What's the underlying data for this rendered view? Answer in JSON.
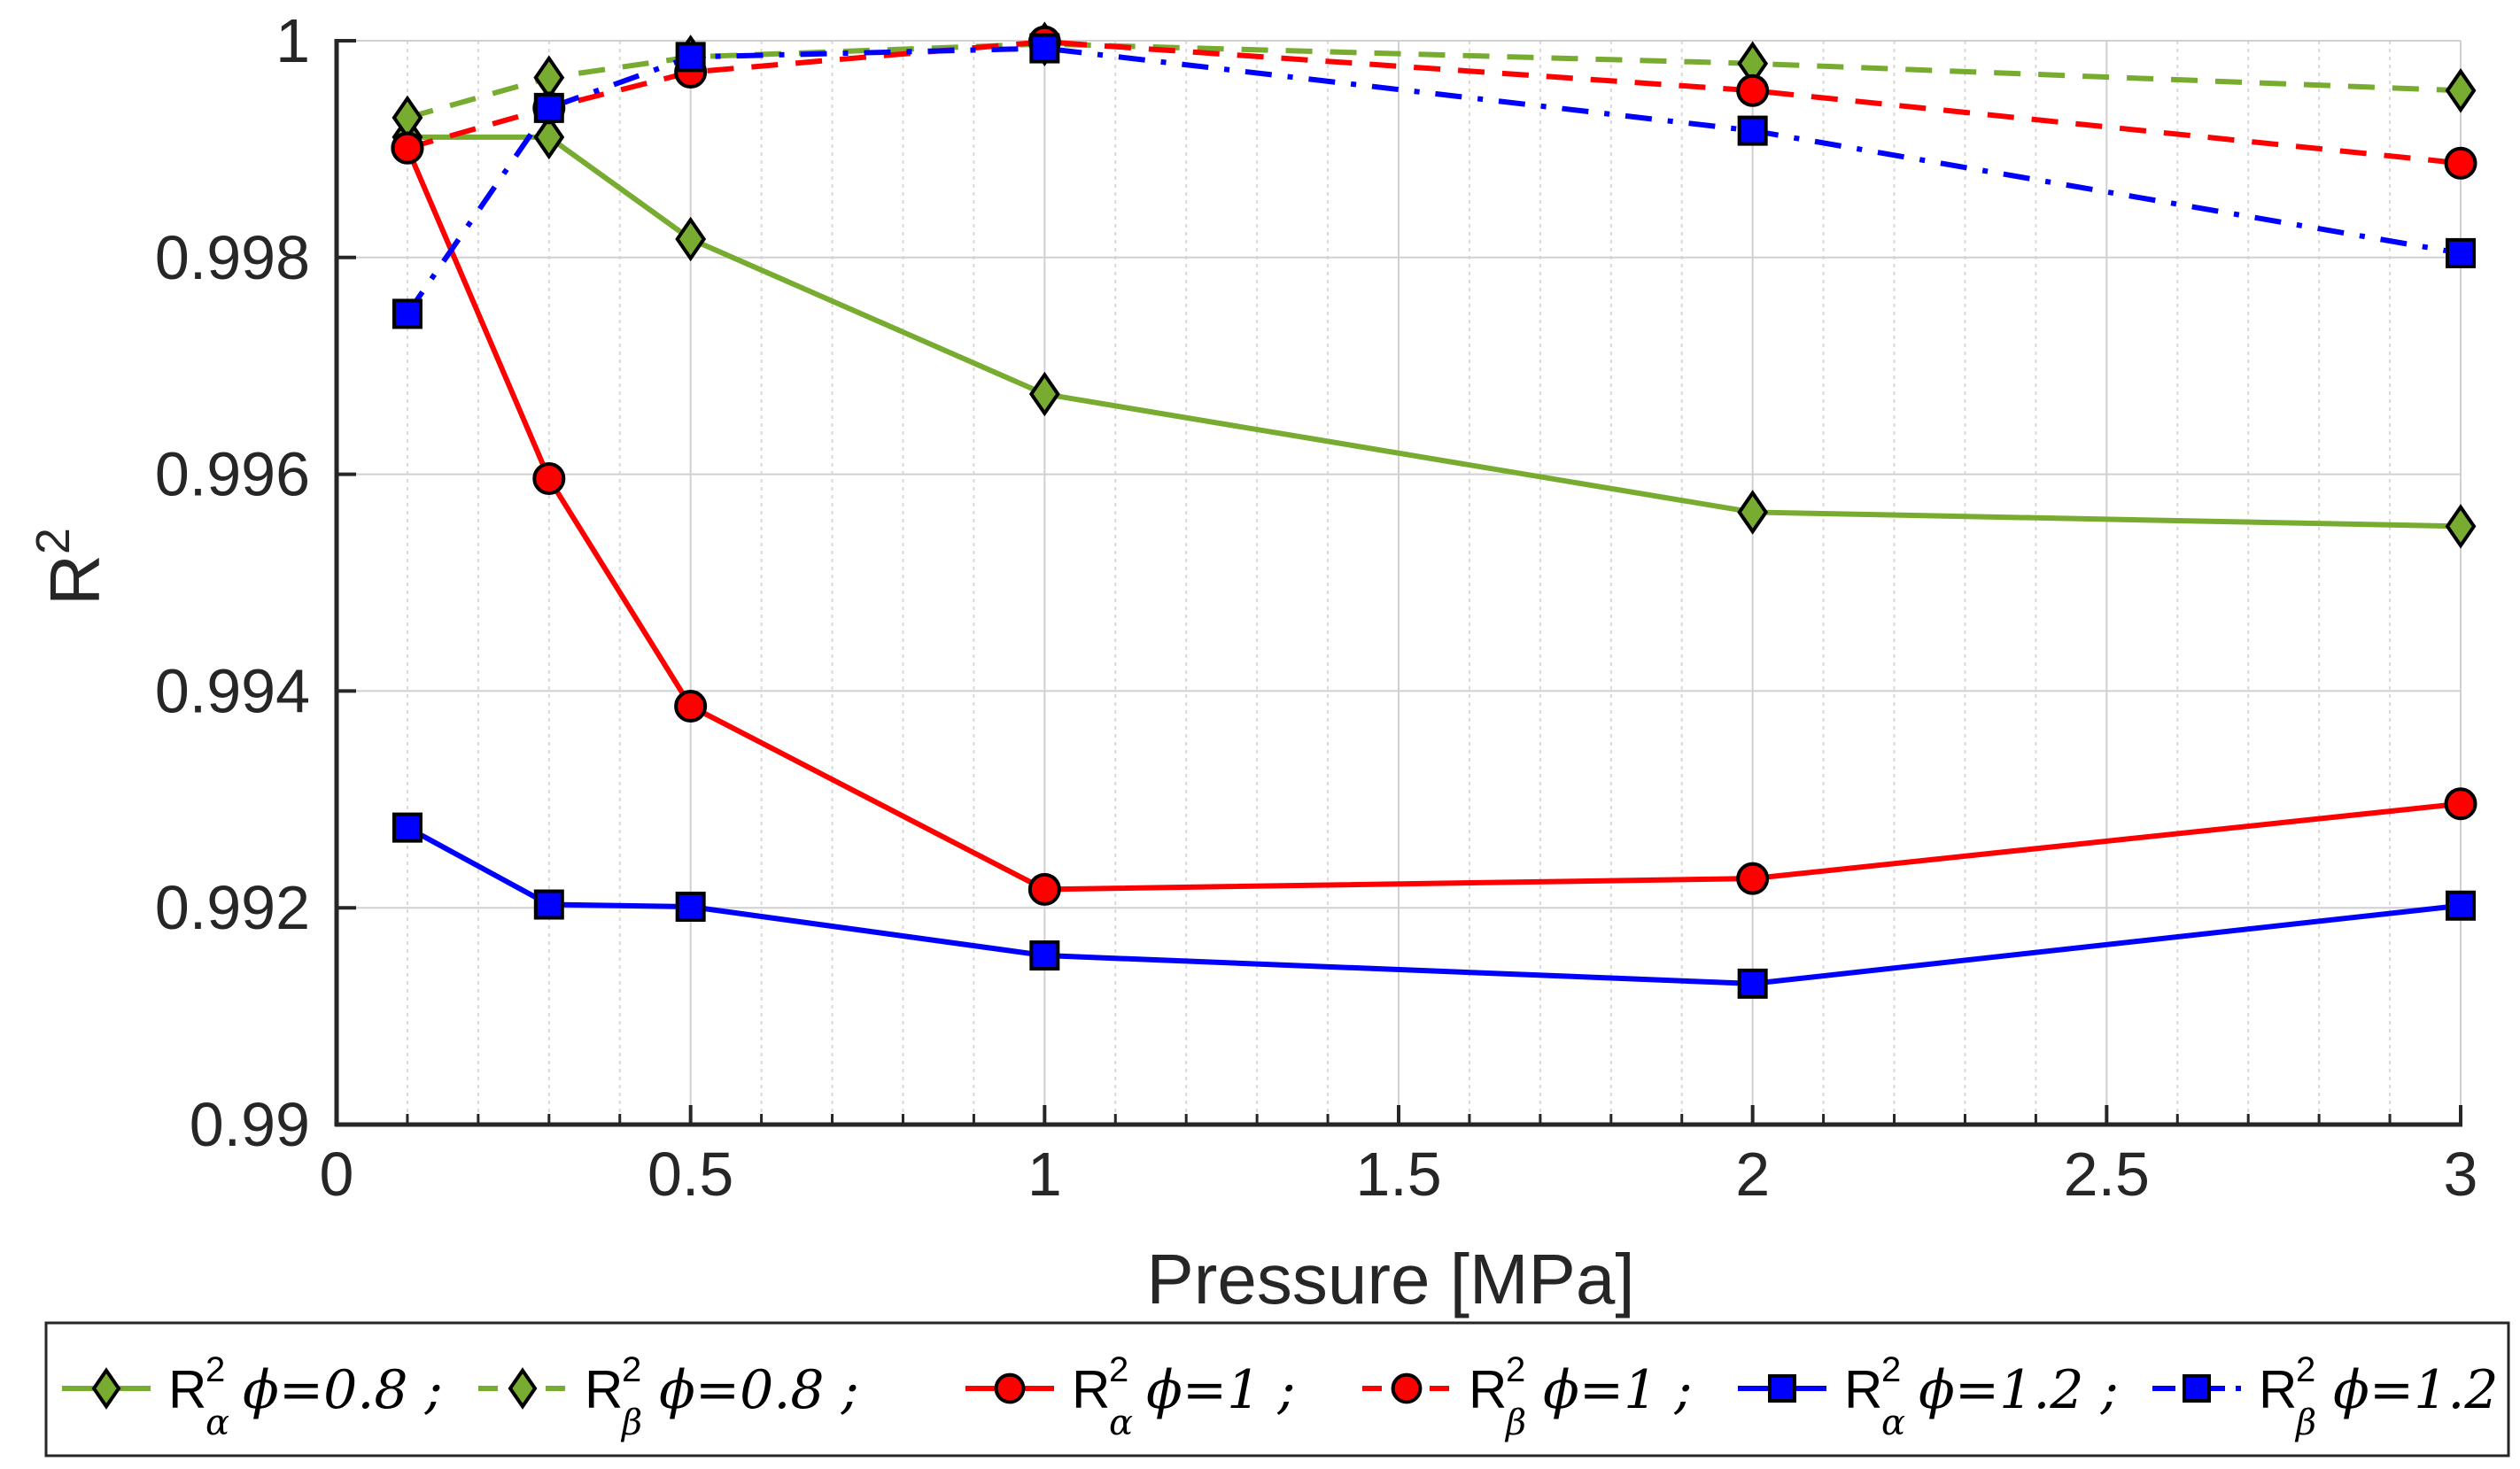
{
  "chart_data": {
    "type": "line",
    "title": "",
    "xlabel": "Pressure [MPa]",
    "ylabel": "R",
    "ylabel_sup": "2",
    "xlim": [
      0,
      3
    ],
    "ylim": [
      0.99,
      1.0
    ],
    "xticks": [
      0,
      0.5,
      1,
      1.5,
      2,
      2.5,
      3
    ],
    "xtick_labels": [
      "0",
      "0.5",
      "1",
      "1.5",
      "2",
      "2.5",
      "3"
    ],
    "yticks": [
      0.99,
      0.992,
      0.994,
      0.996,
      0.998,
      1.0
    ],
    "ytick_labels": [
      "0.99",
      "0.992",
      "0.994",
      "0.996",
      "0.998",
      "1"
    ],
    "grid": true,
    "minor_grid_x": true,
    "legend_position": "bottom",
    "x": [
      0.1,
      0.3,
      0.5,
      1,
      2,
      3
    ],
    "series": [
      {
        "name": "R2_alpha phi=0.8",
        "base": "R",
        "sup": "2",
        "sub": "α",
        "param": "ϕ=0.8",
        "sep": " ;",
        "color": "#77ac30",
        "dash": "solid",
        "marker": "diamond",
        "values": [
          0.99911,
          0.99911,
          0.99817,
          0.99674,
          0.99565,
          0.99552
        ]
      },
      {
        "name": "R2_beta phi=0.8",
        "base": "R",
        "sup": "2",
        "sub": "β",
        "param": "ϕ=0.8",
        "sep": " ;",
        "color": "#77ac30",
        "dash": "dashed",
        "marker": "diamond",
        "values": [
          0.99929,
          0.99966,
          0.99985,
          0.99997,
          0.99979,
          0.99954
        ]
      },
      {
        "name": "R2_alpha phi=1",
        "base": "R",
        "sup": "2",
        "sub": "α",
        "param": "ϕ=1",
        "sep": " ;",
        "color": "#ff0000",
        "dash": "solid",
        "marker": "circle",
        "values": [
          0.99901,
          0.99596,
          0.99386,
          0.99217,
          0.99227,
          0.99296
        ]
      },
      {
        "name": "R2_beta phi=1",
        "base": "R",
        "sup": "2",
        "sub": "β",
        "param": "ϕ=1",
        "sep": " ;",
        "color": "#ff0000",
        "dash": "dashed",
        "marker": "circle",
        "values": [
          0.99901,
          0.99938,
          0.99971,
          0.99999,
          0.99954,
          0.99887
        ]
      },
      {
        "name": "R2_alpha phi=1.2",
        "base": "R",
        "sup": "2",
        "sub": "α",
        "param": "ϕ=1.2",
        "sep": " ;",
        "color": "#0000ff",
        "dash": "solid",
        "marker": "square",
        "values": [
          0.99274,
          0.99203,
          0.99201,
          0.99156,
          0.9913,
          0.99202
        ]
      },
      {
        "name": "R2_beta phi=1.2",
        "base": "R",
        "sup": "2",
        "sub": "β",
        "param": "ϕ=1.2",
        "sep": "",
        "color": "#0000ff",
        "dash": "dashdot",
        "marker": "square",
        "values": [
          0.99748,
          0.99938,
          0.99985,
          0.99993,
          0.99917,
          0.99804
        ]
      }
    ]
  }
}
